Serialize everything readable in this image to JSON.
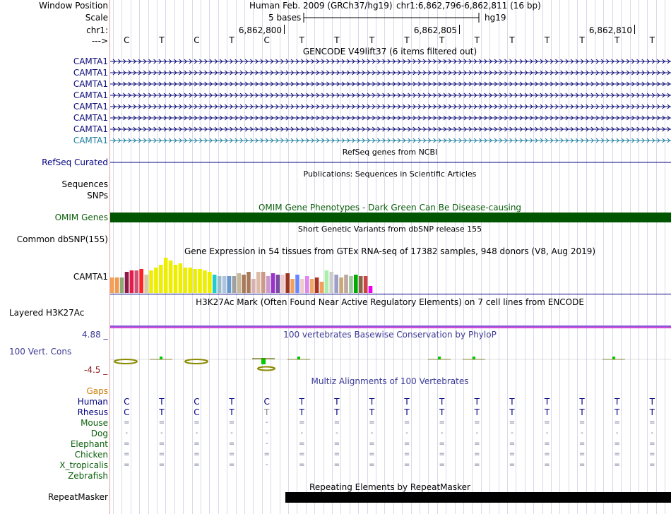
{
  "header": {
    "window_position_label": "Window Position",
    "scale_label": "Scale",
    "chrom_label": "chr1:",
    "strand_label": "--->",
    "assembly": "Human Feb. 2009 (GRCh37/hg19)",
    "position": "chr1:6,862,796-6,862,811 (16 bp)",
    "scale_text": "5 bases",
    "db": "hg19",
    "coords": [
      "6,862,800",
      "6,862,805",
      "6,862,810"
    ],
    "bases": [
      "C",
      "T",
      "C",
      "T",
      "C",
      "T",
      "T",
      "T",
      "T",
      "T",
      "T",
      "T",
      "T",
      "T",
      "T",
      "T"
    ]
  },
  "gencode": {
    "title": "GENCODE V49lift37 (6 items filtered out)",
    "items": [
      "CAMTA1",
      "CAMTA1",
      "CAMTA1",
      "CAMTA1",
      "CAMTA1",
      "CAMTA1",
      "CAMTA1",
      "CAMTA1"
    ],
    "line_color": "#0c0c78",
    "last_color": "#1f7fa0"
  },
  "refseq": {
    "title": "RefSeq genes from NCBI",
    "label": "RefSeq Curated"
  },
  "publications": {
    "title": "Publications: Sequences in Scientific Articles",
    "label1": "Sequences",
    "label2": "SNPs"
  },
  "omim": {
    "title": "OMIM Gene Phenotypes - Dark Green Can Be Disease-causing",
    "label": "OMIM Genes",
    "color": "#005500"
  },
  "dbsnp": {
    "title": "Short Genetic Variants from dbSNP release 155",
    "label": "Common dbSNP(155)"
  },
  "gtex": {
    "title": "Gene Expression in 54 tissues from GTEx RNA-seq of 17382 samples, 948 donors (V8, Aug 2019)",
    "label": "CAMTA1",
    "bars": [
      {
        "v": 22,
        "c": "#f2a05a"
      },
      {
        "v": 22,
        "c": "#f29a50"
      },
      {
        "v": 22,
        "c": "#8fa878"
      },
      {
        "v": 30,
        "c": "#8b1a4a"
      },
      {
        "v": 32,
        "c": "#e31a4a"
      },
      {
        "v": 32,
        "c": "#cc5577"
      },
      {
        "v": 34,
        "c": "#ff2222"
      },
      {
        "v": 26,
        "c": "#d9c9a3"
      },
      {
        "v": 32,
        "c": "#eeee00"
      },
      {
        "v": 36,
        "c": "#eeee00"
      },
      {
        "v": 40,
        "c": "#eeee00"
      },
      {
        "v": 50,
        "c": "#eeee00"
      },
      {
        "v": 46,
        "c": "#eeee00"
      },
      {
        "v": 40,
        "c": "#eeee00"
      },
      {
        "v": 42,
        "c": "#eeee00"
      },
      {
        "v": 36,
        "c": "#eeee00"
      },
      {
        "v": 36,
        "c": "#eeee00"
      },
      {
        "v": 34,
        "c": "#eeee00"
      },
      {
        "v": 34,
        "c": "#eeee00"
      },
      {
        "v": 32,
        "c": "#eeee00"
      },
      {
        "v": 30,
        "c": "#eeee00"
      },
      {
        "v": 26,
        "c": "#22cccc"
      },
      {
        "v": 24,
        "c": "#99bbcc"
      },
      {
        "v": 24,
        "c": "#b0c4de"
      },
      {
        "v": 24,
        "c": "#6699cc"
      },
      {
        "v": 24,
        "c": "#a0a0a0"
      },
      {
        "v": 28,
        "c": "#c8b89a"
      },
      {
        "v": 26,
        "c": "#a87a5a"
      },
      {
        "v": 30,
        "c": "#a87a5a"
      },
      {
        "v": 20,
        "c": "#d9b0b0"
      },
      {
        "v": 30,
        "c": "#ddbbaa"
      },
      {
        "v": 30,
        "c": "#cc9988"
      },
      {
        "v": 24,
        "c": "#cc99cc"
      },
      {
        "v": 28,
        "c": "#9933cc"
      },
      {
        "v": 26,
        "c": "#7a4aa0"
      },
      {
        "v": 26,
        "c": "#eecccc"
      },
      {
        "v": 28,
        "c": "#993322"
      },
      {
        "v": 20,
        "c": "#f2a05a"
      },
      {
        "v": 26,
        "c": "#6688ff"
      },
      {
        "v": 20,
        "c": "#eecccc"
      },
      {
        "v": 24,
        "c": "#dd88ee"
      },
      {
        "v": 20,
        "c": "#eeaa66"
      },
      {
        "v": 22,
        "c": "#aa3322"
      },
      {
        "v": 16,
        "c": "#f2a05a"
      },
      {
        "v": 32,
        "c": "#aaeeaa"
      },
      {
        "v": 30,
        "c": "#cccccc"
      },
      {
        "v": 26,
        "c": "#9ca0c8"
      },
      {
        "v": 22,
        "c": "#c8a878"
      },
      {
        "v": 26,
        "c": "#bfa8a0"
      },
      {
        "v": 24,
        "c": "#a0c8a0"
      },
      {
        "v": 26,
        "c": "#00aa00"
      },
      {
        "v": 24,
        "c": "#886644"
      },
      {
        "v": 24,
        "c": "#cc4444"
      },
      {
        "v": 10,
        "c": "#ee00ee"
      }
    ]
  },
  "h3k27ac": {
    "title": "H3K27Ac Mark (Often Found Near Active Regulatory Elements) on 7 cell lines from ENCODE",
    "label": "Layered H3K27Ac"
  },
  "phylop": {
    "title": "100 vertebrates Basewise Conservation by PhyloP",
    "label": "100 Vert. Cons",
    "max": "4.88 _",
    "min": "-4.5 _"
  },
  "multiz": {
    "title": "Multiz Alignments of 100 Vertebrates",
    "gaps_label": "Gaps",
    "species": [
      {
        "name": "Human",
        "bases": [
          "C",
          "T",
          "C",
          "T",
          "C",
          "T",
          "T",
          "T",
          "T",
          "T",
          "T",
          "T",
          "T",
          "T",
          "T",
          "T"
        ]
      },
      {
        "name": "Rhesus",
        "bases": [
          "C",
          "T",
          "C",
          "T",
          "T",
          "T",
          "T",
          "T",
          "T",
          "T",
          "T",
          "T",
          "T",
          "T",
          "T",
          "T"
        ]
      },
      {
        "name": "Mouse",
        "bases": [
          "=",
          "=",
          "=",
          "=",
          "-",
          "=",
          "=",
          "=",
          "=",
          "=",
          "=",
          "=",
          "=",
          "=",
          "=",
          "="
        ]
      },
      {
        "name": "Dog",
        "bases": [
          "-",
          "-",
          "-",
          "-",
          "-",
          "-",
          "-",
          "-",
          "-",
          "-",
          "-",
          "-",
          "-",
          "-",
          "-",
          "-"
        ]
      },
      {
        "name": "Elephant",
        "bases": [
          "=",
          "=",
          "=",
          "=",
          "-",
          "=",
          "=",
          "=",
          "=",
          "=",
          "=",
          "=",
          "=",
          "=",
          "=",
          "="
        ]
      },
      {
        "name": "Chicken",
        "bases": [
          "=",
          "=",
          "=",
          "=",
          "=",
          "=",
          "=",
          "=",
          "=",
          "=",
          "=",
          "=",
          "=",
          "=",
          "=",
          "="
        ]
      },
      {
        "name": "X_tropicalis",
        "bases": [
          "=",
          "=",
          "=",
          "=",
          "-",
          "=",
          "=",
          "=",
          "=",
          "=",
          "=",
          "=",
          "=",
          "=",
          "=",
          "="
        ]
      },
      {
        "name": "Zebrafish",
        "bases": []
      }
    ]
  },
  "repeatmasker": {
    "title": "Repeating Elements by RepeatMasker",
    "label": "RepeatMasker"
  }
}
